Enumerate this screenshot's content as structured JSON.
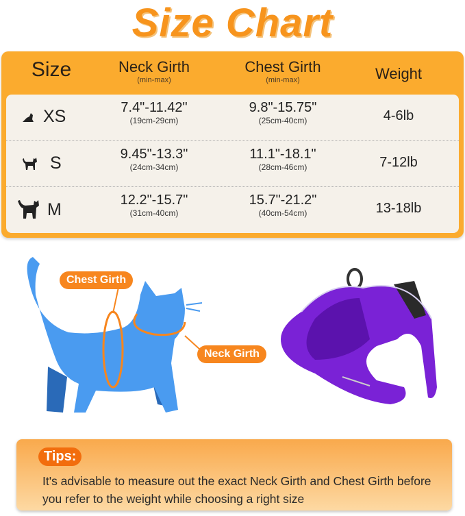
{
  "title": "Size Chart",
  "table": {
    "headers": {
      "size": "Size",
      "neck": "Neck Girth",
      "neck_sub": "(min-max)",
      "chest": "Chest Girth",
      "chest_sub": "(min-max)",
      "weight": "Weight"
    },
    "rows": [
      {
        "icon": "small-cat-icon",
        "size": "XS",
        "neck": "7.4\"-11.42\"",
        "neck_cm": "(19cm-29cm)",
        "chest": "9.8\"-15.75\"",
        "chest_cm": "(25cm-40cm)",
        "weight": "4-6lb"
      },
      {
        "icon": "medium-cat-icon",
        "size": "S",
        "neck": "9.45\"-13.3\"",
        "neck_cm": "(24cm-34cm)",
        "chest": "11.1\"-18.1\"",
        "chest_cm": "(28cm-46cm)",
        "weight": "7-12lb"
      },
      {
        "icon": "large-cat-icon",
        "size": "M",
        "neck": "12.2\"-15.7\"",
        "neck_cm": "(31cm-40cm)",
        "chest": "15.7\"-21.2\"",
        "chest_cm": "(40cm-54cm)",
        "weight": "13-18lb"
      }
    ]
  },
  "diagram": {
    "chest_label": "Chest Girth",
    "neck_label": "Neck Girth",
    "cat_color": "#4a9bf0",
    "accent": "#f7861e",
    "harness_color": "#7a22d6"
  },
  "tips": {
    "label": "Tips:",
    "text": "It's advisable to measure out the exact Neck Girth and Chest Girth before you refer to the weight while choosing a right size"
  }
}
